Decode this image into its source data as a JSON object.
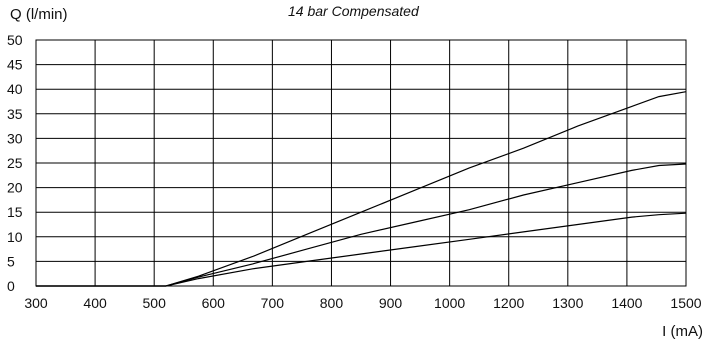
{
  "chart_data": {
    "type": "line",
    "title": "14 bar Compensated",
    "xlabel": "I (mA)",
    "ylabel": "Q (l/min)",
    "xlim": [
      300,
      1500
    ],
    "ylim": [
      0,
      50
    ],
    "x_ticks": [
      300,
      400,
      500,
      600,
      700,
      800,
      900,
      1000,
      1200,
      1300,
      1400,
      1500
    ],
    "y_ticks": [
      0,
      5,
      10,
      15,
      20,
      25,
      30,
      35,
      40,
      45,
      50
    ],
    "grid": true,
    "series": [
      {
        "color": "#000000",
        "points": [
          [
            300,
            0
          ],
          [
            540,
            0
          ],
          [
            600,
            2
          ],
          [
            700,
            6
          ],
          [
            800,
            10.5
          ],
          [
            900,
            15
          ],
          [
            1000,
            19.5
          ],
          [
            1100,
            24
          ],
          [
            1200,
            28
          ],
          [
            1300,
            32.5
          ],
          [
            1400,
            36.5
          ],
          [
            1450,
            38.5
          ],
          [
            1500,
            39.5
          ]
        ]
      },
      {
        "color": "#000000",
        "points": [
          [
            300,
            0
          ],
          [
            540,
            0
          ],
          [
            600,
            1.8
          ],
          [
            700,
            4.5
          ],
          [
            800,
            7.5
          ],
          [
            900,
            10.5
          ],
          [
            1000,
            13
          ],
          [
            1100,
            15.5
          ],
          [
            1200,
            18.5
          ],
          [
            1300,
            21
          ],
          [
            1400,
            23.5
          ],
          [
            1450,
            24.5
          ],
          [
            1500,
            24.8
          ]
        ]
      },
      {
        "color": "#000000",
        "points": [
          [
            300,
            0
          ],
          [
            540,
            0
          ],
          [
            600,
            1.5
          ],
          [
            700,
            3.5
          ],
          [
            800,
            5
          ],
          [
            900,
            6.5
          ],
          [
            1000,
            8
          ],
          [
            1100,
            9.5
          ],
          [
            1200,
            11
          ],
          [
            1300,
            12.5
          ],
          [
            1400,
            14
          ],
          [
            1450,
            14.5
          ],
          [
            1500,
            14.8
          ]
        ]
      }
    ]
  }
}
